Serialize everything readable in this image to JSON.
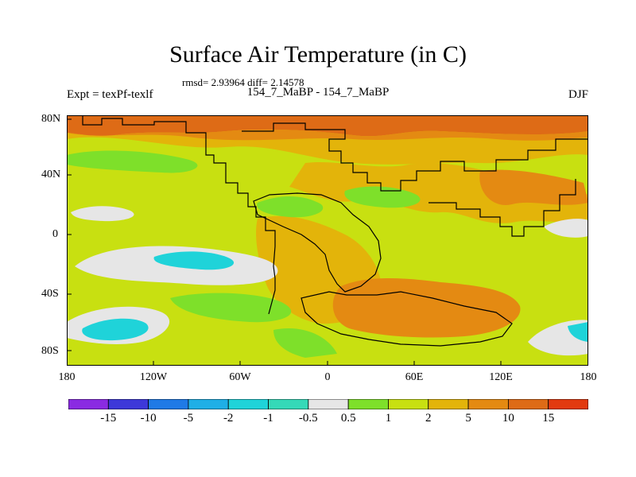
{
  "title": "Surface Air Temperature (in C)",
  "stats_line": "rmsd= 2.93964 diff= 2.14578",
  "expt_label": "Expt = texPf-texlf",
  "subtitle": "154_7_MaBP - 154_7_MaBP",
  "season": "DJF",
  "map": {
    "y_ticks": [
      "80N",
      "40N",
      "0",
      "40S",
      "80S"
    ],
    "x_ticks": [
      "180",
      "120W",
      "60W",
      "0",
      "60E",
      "120E",
      "180"
    ],
    "field_colors": {
      "cold_cyan": "#1FD3D9",
      "neutral_white": "#E6E6E6",
      "light_green": "#7EE02A",
      "yellow_green": "#C8E011",
      "gold": "#E3B40A",
      "orange": "#E48A12",
      "dark_orange": "#DE6B16"
    }
  },
  "colorbar": {
    "labels": [
      "-15",
      "-10",
      "-5",
      "-2",
      "-1",
      "-0.5",
      "0.5",
      "1",
      "2",
      "5",
      "10",
      "15"
    ],
    "colors": [
      "#8A2BE2",
      "#3D38D9",
      "#1F7AE6",
      "#1FAFE6",
      "#1FD3D9",
      "#35D9B8",
      "#E6E6E6",
      "#7EE02A",
      "#C8E011",
      "#E3B40A",
      "#E48A12",
      "#DE6B16",
      "#E23A10"
    ]
  }
}
